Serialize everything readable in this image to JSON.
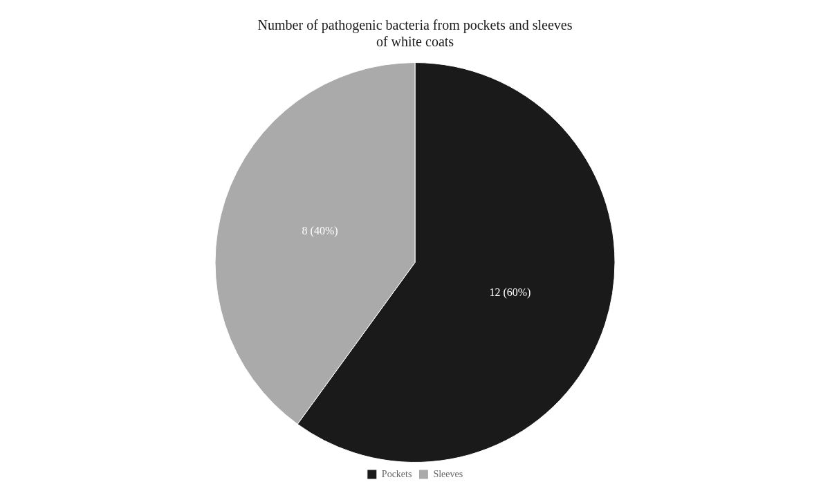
{
  "chart_data": {
    "type": "pie",
    "title": "Number of pathogenic bacteria from pockets and sleeves\nof white coats",
    "categories": [
      "Pockets",
      "Sleeves"
    ],
    "values": [
      12,
      8
    ],
    "value_labels": [
      "12 (60%)",
      "8 (40%)"
    ],
    "colors": [
      "#1a1a1a",
      "#aaaaaa"
    ],
    "data_labels": true,
    "legend": "bottom"
  }
}
